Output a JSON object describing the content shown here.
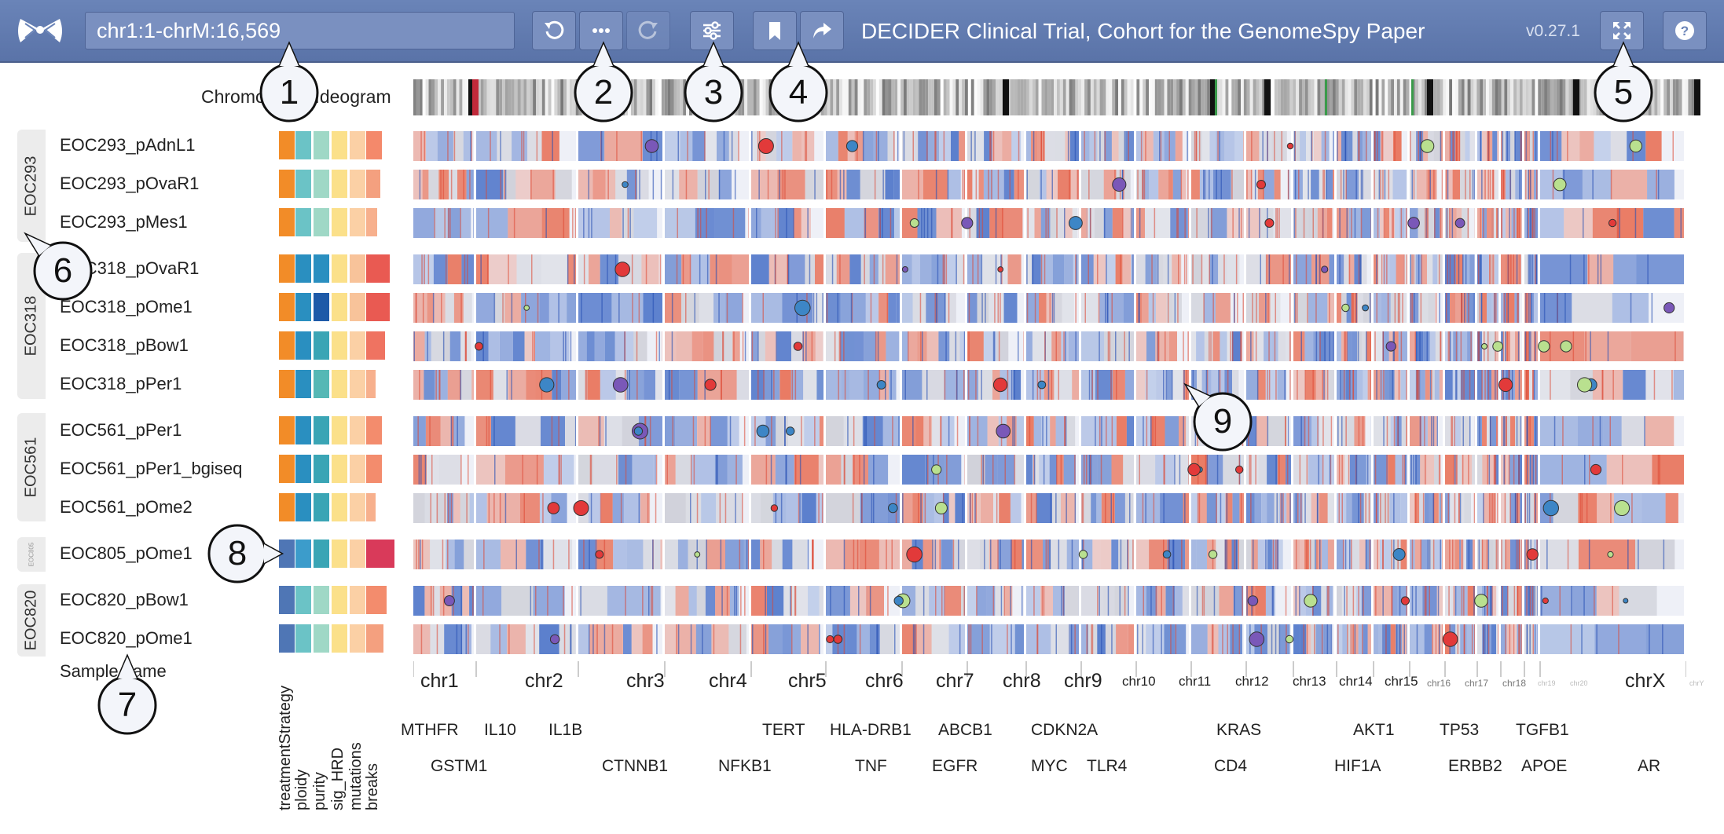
{
  "toolbar": {
    "location": "chr1:1-chrM:16,569",
    "title": "DECIDER Clinical Trial, Cohort for the GenomeSpy Paper",
    "version": "v0.27.1",
    "buttons": [
      {
        "name": "undo-button",
        "icon": "undo-icon",
        "enabled": true
      },
      {
        "name": "more-button",
        "icon": "ellipsis-icon",
        "enabled": true
      },
      {
        "name": "redo-button",
        "icon": "redo-icon",
        "enabled": false
      },
      {
        "name": "view-settings-button",
        "icon": "sliders-icon",
        "enabled": true
      },
      {
        "name": "bookmark-button",
        "icon": "bookmark-icon",
        "enabled": true
      },
      {
        "name": "share-button",
        "icon": "share-icon",
        "enabled": true
      },
      {
        "name": "fullscreen-button",
        "icon": "expand-icon",
        "enabled": true
      },
      {
        "name": "help-button",
        "icon": "question-icon",
        "enabled": true
      }
    ]
  },
  "ideogram_label": "Chromosome Ideogram",
  "sample_header": "Sample name",
  "attribute_headers": [
    "treatmentStrategy",
    "ploidy",
    "purity",
    "sig_HRD",
    "mutations",
    "breaks"
  ],
  "groups": [
    {
      "label": "EOC293",
      "samples": [
        "EOC293_pAdnL1",
        "EOC293_pOvaR1",
        "EOC293_pMes1"
      ]
    },
    {
      "label": "EOC318",
      "samples": [
        "EOC318_pOvaR1",
        "EOC318_pOme1",
        "EOC318_pBow1",
        "EOC318_pPer1"
      ]
    },
    {
      "label": "EOC561",
      "samples": [
        "EOC561_pPer1",
        "EOC561_pPer1_bgiseq",
        "EOC561_pOme2"
      ]
    },
    {
      "label": "EOC805",
      "samples": [
        "EOC805_pOme1"
      ]
    },
    {
      "label": "EOC820",
      "samples": [
        "EOC820_pBow1",
        "EOC820_pOme1"
      ]
    }
  ],
  "chromosomes": [
    "chr1",
    "chr2",
    "chr3",
    "chr4",
    "chr5",
    "chr6",
    "chr7",
    "chr8",
    "chr9",
    "chr10",
    "chr11",
    "chr12",
    "chr13",
    "chr14",
    "chr15",
    "chr16",
    "chr17",
    "chr18",
    "chr19",
    "chr20",
    "chrX",
    "chrY"
  ],
  "genes_row1": [
    "MTHFR",
    "IL10",
    "IL1B",
    "TERT",
    "HLA-DRB1",
    "ABCB1",
    "CDKN2A",
    "KRAS",
    "AKT1",
    "TP53",
    "TGFB1"
  ],
  "genes_row2": [
    "GSTM1",
    "CTNNB1",
    "NFKB1",
    "TNF",
    "EGFR",
    "MYC",
    "TLR4",
    "CD4",
    "HIF1A",
    "ERBB2",
    "APOE",
    "AR"
  ],
  "callouts": [
    "1",
    "2",
    "3",
    "4",
    "5",
    "6",
    "7",
    "8",
    "9"
  ],
  "colors": {
    "toolbar": "#5f78ad",
    "gain": "#e8664a",
    "loss": "#4a72c8",
    "neutral": "#e9ecf4",
    "treatment_orange": "#f28c28",
    "treatment_blue": "#4f76b5"
  }
}
